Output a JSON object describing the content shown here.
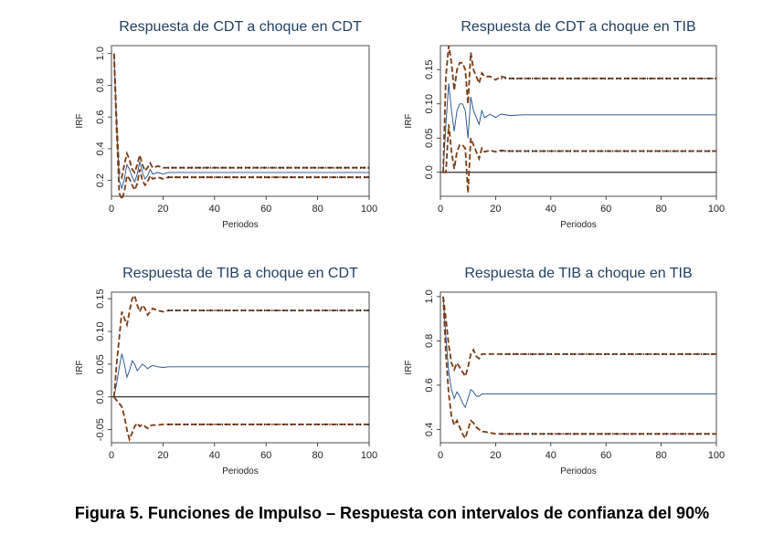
{
  "caption": "Figura 5. Funciones de Impulso – Respuesta con intervalos de confianza del 90%",
  "colors": {
    "irf": "#1f4e8c",
    "band": "#7a3b12",
    "zero": "#000000",
    "title": "#1f3f5f"
  },
  "chart_data": [
    {
      "type": "line",
      "title": "Respuesta de CDT a choque en CDT",
      "xlabel": "Periodos",
      "ylabel": "IRF",
      "xlim": [
        0,
        100
      ],
      "ylim": [
        0.1,
        1.05
      ],
      "xticks": [
        0,
        20,
        40,
        60,
        80,
        100
      ],
      "yticks": [
        0.2,
        0.4,
        0.6,
        0.8,
        1.0
      ],
      "ytick_labels": [
        "0.2",
        "0.4",
        "0.6",
        "0.8",
        "1.0"
      ],
      "zero_line": false,
      "series": [
        {
          "role": "irf",
          "x": [
            1,
            2,
            3,
            4,
            5,
            6,
            7,
            8,
            9,
            10,
            11,
            12,
            13,
            14,
            15,
            16,
            18,
            20,
            22,
            25,
            30,
            40,
            50,
            60,
            70,
            80,
            90,
            100
          ],
          "y": [
            1.0,
            0.55,
            0.2,
            0.15,
            0.21,
            0.3,
            0.27,
            0.22,
            0.19,
            0.24,
            0.32,
            0.25,
            0.21,
            0.23,
            0.27,
            0.24,
            0.25,
            0.24,
            0.25,
            0.25,
            0.25,
            0.25,
            0.25,
            0.25,
            0.25,
            0.25,
            0.25,
            0.25
          ]
        },
        {
          "role": "upper",
          "x": [
            1,
            2,
            3,
            4,
            5,
            6,
            7,
            8,
            9,
            10,
            11,
            12,
            13,
            14,
            15,
            16,
            18,
            20,
            22,
            25,
            30,
            40,
            50,
            60,
            70,
            80,
            90,
            100
          ],
          "y": [
            1.0,
            0.58,
            0.25,
            0.22,
            0.3,
            0.37,
            0.33,
            0.27,
            0.25,
            0.3,
            0.36,
            0.3,
            0.26,
            0.28,
            0.31,
            0.28,
            0.29,
            0.28,
            0.28,
            0.28,
            0.28,
            0.28,
            0.28,
            0.28,
            0.28,
            0.28,
            0.28,
            0.28
          ]
        },
        {
          "role": "lower",
          "x": [
            1,
            2,
            3,
            4,
            5,
            6,
            7,
            8,
            9,
            10,
            11,
            12,
            13,
            14,
            15,
            16,
            18,
            20,
            22,
            25,
            30,
            40,
            50,
            60,
            70,
            80,
            90,
            100
          ],
          "y": [
            1.0,
            0.52,
            0.12,
            0.08,
            0.13,
            0.23,
            0.21,
            0.17,
            0.14,
            0.18,
            0.27,
            0.2,
            0.17,
            0.19,
            0.23,
            0.21,
            0.22,
            0.21,
            0.22,
            0.22,
            0.22,
            0.22,
            0.22,
            0.22,
            0.22,
            0.22,
            0.22,
            0.22
          ]
        }
      ]
    },
    {
      "type": "line",
      "title": "Respuesta de CDT a choque en TIB",
      "xlabel": "Periodos",
      "ylabel": "IRF",
      "xlim": [
        0,
        100
      ],
      "ylim": [
        -0.035,
        0.185
      ],
      "xticks": [
        0,
        20,
        40,
        60,
        80,
        100
      ],
      "yticks": [
        0,
        0.05,
        0.1,
        0.15
      ],
      "ytick_labels": [
        "0.0",
        "0.05",
        "0.10",
        "0.15"
      ],
      "zero_line": true,
      "series": [
        {
          "role": "irf",
          "x": [
            1,
            2,
            3,
            4,
            5,
            6,
            7,
            8,
            9,
            10,
            11,
            12,
            13,
            14,
            15,
            16,
            18,
            20,
            22,
            25,
            30,
            40,
            50,
            60,
            70,
            80,
            90,
            100
          ],
          "y": [
            0,
            0.07,
            0.13,
            0.09,
            0.06,
            0.09,
            0.1,
            0.1,
            0.09,
            0.05,
            0.11,
            0.09,
            0.08,
            0.07,
            0.09,
            0.08,
            0.085,
            0.08,
            0.085,
            0.083,
            0.084,
            0.084,
            0.084,
            0.084,
            0.084,
            0.084,
            0.084,
            0.084
          ]
        },
        {
          "role": "upper",
          "x": [
            1,
            2,
            3,
            4,
            5,
            6,
            7,
            8,
            9,
            10,
            11,
            12,
            13,
            14,
            15,
            16,
            18,
            20,
            22,
            25,
            30,
            40,
            50,
            60,
            70,
            80,
            90,
            100
          ],
          "y": [
            0,
            0.14,
            0.185,
            0.16,
            0.12,
            0.15,
            0.16,
            0.16,
            0.15,
            0.1,
            0.175,
            0.15,
            0.14,
            0.13,
            0.145,
            0.14,
            0.14,
            0.135,
            0.14,
            0.137,
            0.137,
            0.137,
            0.137,
            0.137,
            0.137,
            0.137,
            0.137,
            0.137
          ]
        },
        {
          "role": "lower",
          "x": [
            1,
            2,
            3,
            4,
            5,
            6,
            7,
            8,
            9,
            10,
            11,
            12,
            13,
            14,
            15,
            16,
            18,
            20,
            22,
            25,
            30,
            40,
            50,
            60,
            70,
            80,
            90,
            100
          ],
          "y": [
            0,
            0.0,
            0.07,
            0.03,
            0.005,
            0.03,
            0.04,
            0.04,
            0.035,
            -0.03,
            0.05,
            0.04,
            0.03,
            0.02,
            0.035,
            0.03,
            0.032,
            0.03,
            0.032,
            0.031,
            0.031,
            0.031,
            0.031,
            0.031,
            0.031,
            0.031,
            0.031,
            0.031
          ]
        }
      ]
    },
    {
      "type": "line",
      "title": "Respuesta de TIB a choque en CDT",
      "xlabel": "Periodos",
      "ylabel": "IRF",
      "xlim": [
        0,
        100
      ],
      "ylim": [
        -0.07,
        0.16
      ],
      "xticks": [
        0,
        20,
        40,
        60,
        80,
        100
      ],
      "yticks": [
        -0.05,
        0,
        0.05,
        0.1,
        0.15
      ],
      "ytick_labels": [
        "-0.05",
        "0.0",
        "0.05",
        "0.10",
        "0.15"
      ],
      "zero_line": true,
      "series": [
        {
          "role": "irf",
          "x": [
            1,
            2,
            3,
            4,
            5,
            6,
            7,
            8,
            9,
            10,
            11,
            12,
            13,
            14,
            15,
            16,
            18,
            20,
            22,
            25,
            30,
            40,
            50,
            60,
            70,
            80,
            90,
            100
          ],
          "y": [
            0,
            0.02,
            0.045,
            0.066,
            0.05,
            0.03,
            0.04,
            0.055,
            0.05,
            0.04,
            0.045,
            0.05,
            0.047,
            0.043,
            0.046,
            0.048,
            0.046,
            0.045,
            0.046,
            0.046,
            0.046,
            0.046,
            0.046,
            0.046,
            0.046,
            0.046,
            0.046,
            0.046
          ]
        },
        {
          "role": "upper",
          "x": [
            1,
            2,
            3,
            4,
            5,
            6,
            7,
            8,
            9,
            10,
            11,
            12,
            13,
            14,
            15,
            16,
            18,
            20,
            22,
            25,
            30,
            40,
            50,
            60,
            70,
            80,
            90,
            100
          ],
          "y": [
            0,
            0.05,
            0.09,
            0.13,
            0.12,
            0.11,
            0.13,
            0.15,
            0.155,
            0.14,
            0.13,
            0.14,
            0.135,
            0.125,
            0.13,
            0.135,
            0.132,
            0.13,
            0.132,
            0.132,
            0.132,
            0.132,
            0.132,
            0.132,
            0.132,
            0.132,
            0.132,
            0.132
          ]
        },
        {
          "role": "lower",
          "x": [
            1,
            2,
            3,
            4,
            5,
            6,
            7,
            8,
            9,
            10,
            11,
            12,
            13,
            14,
            15,
            16,
            18,
            20,
            22,
            25,
            30,
            40,
            50,
            60,
            70,
            80,
            90,
            100
          ],
          "y": [
            0,
            -0.005,
            -0.01,
            -0.015,
            -0.03,
            -0.05,
            -0.065,
            -0.055,
            -0.045,
            -0.04,
            -0.045,
            -0.042,
            -0.045,
            -0.048,
            -0.044,
            -0.043,
            -0.043,
            -0.042,
            -0.042,
            -0.042,
            -0.042,
            -0.042,
            -0.042,
            -0.042,
            -0.042,
            -0.042,
            -0.042,
            -0.042
          ]
        }
      ]
    },
    {
      "type": "line",
      "title": "Respuesta de TIB a choque en TIB",
      "xlabel": "Periodos",
      "ylabel": "IRF",
      "xlim": [
        0,
        100
      ],
      "ylim": [
        0.34,
        1.02
      ],
      "xticks": [
        0,
        20,
        40,
        60,
        80,
        100
      ],
      "yticks": [
        0.4,
        0.6,
        0.8,
        1.0
      ],
      "ytick_labels": [
        "0.4",
        "0.6",
        "0.8",
        "1.0"
      ],
      "zero_line": false,
      "series": [
        {
          "role": "irf",
          "x": [
            1,
            2,
            3,
            4,
            5,
            6,
            7,
            8,
            9,
            10,
            11,
            12,
            13,
            14,
            15,
            16,
            18,
            20,
            22,
            25,
            30,
            40,
            50,
            60,
            70,
            80,
            90,
            100
          ],
          "y": [
            1.0,
            0.82,
            0.66,
            0.58,
            0.54,
            0.57,
            0.55,
            0.52,
            0.5,
            0.54,
            0.58,
            0.57,
            0.55,
            0.55,
            0.56,
            0.56,
            0.56,
            0.56,
            0.56,
            0.56,
            0.56,
            0.56,
            0.56,
            0.56,
            0.56,
            0.56,
            0.56,
            0.56
          ]
        },
        {
          "role": "upper",
          "x": [
            1,
            2,
            3,
            4,
            5,
            6,
            7,
            8,
            9,
            10,
            11,
            12,
            13,
            14,
            15,
            16,
            18,
            20,
            22,
            25,
            30,
            40,
            50,
            60,
            70,
            80,
            90,
            100
          ],
          "y": [
            1.0,
            0.9,
            0.78,
            0.7,
            0.67,
            0.7,
            0.68,
            0.66,
            0.64,
            0.68,
            0.74,
            0.76,
            0.73,
            0.72,
            0.74,
            0.74,
            0.74,
            0.74,
            0.74,
            0.74,
            0.74,
            0.74,
            0.74,
            0.74,
            0.74,
            0.74,
            0.74,
            0.74
          ]
        },
        {
          "role": "lower",
          "x": [
            1,
            2,
            3,
            4,
            5,
            6,
            7,
            8,
            9,
            10,
            11,
            12,
            13,
            14,
            15,
            16,
            18,
            20,
            22,
            25,
            30,
            40,
            50,
            60,
            70,
            80,
            90,
            100
          ],
          "y": [
            1.0,
            0.74,
            0.56,
            0.46,
            0.42,
            0.44,
            0.41,
            0.38,
            0.36,
            0.4,
            0.44,
            0.43,
            0.41,
            0.4,
            0.39,
            0.39,
            0.385,
            0.38,
            0.38,
            0.38,
            0.38,
            0.38,
            0.38,
            0.38,
            0.38,
            0.38,
            0.38,
            0.38
          ]
        }
      ]
    }
  ]
}
